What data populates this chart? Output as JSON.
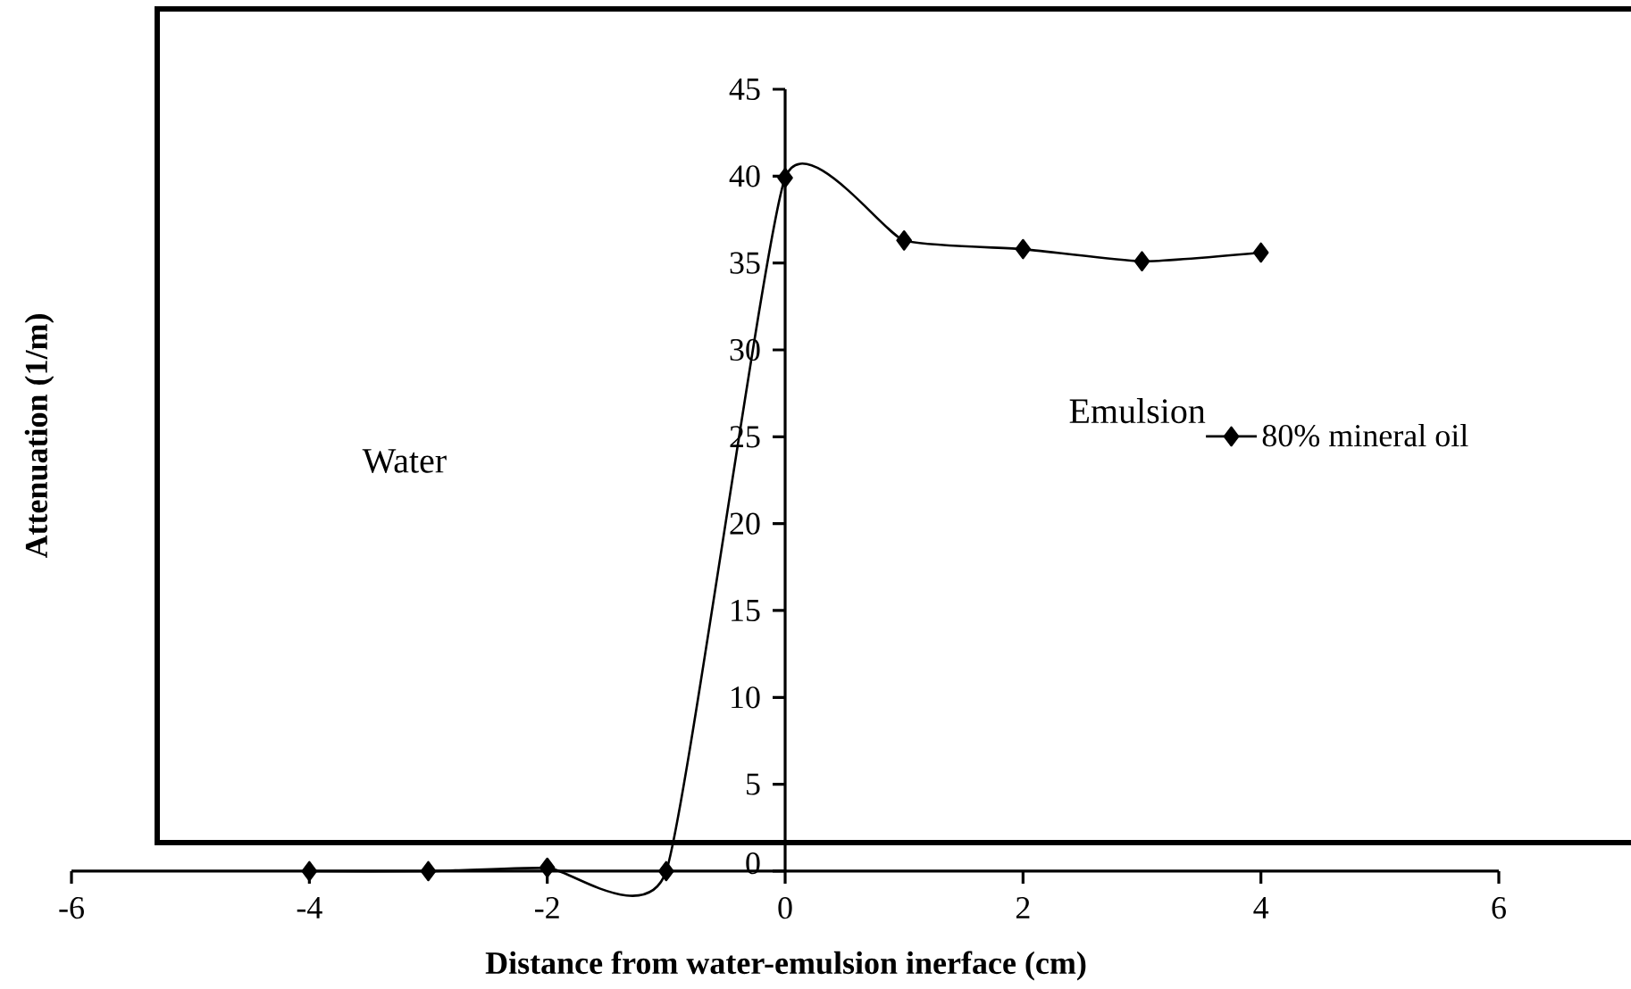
{
  "chart_data": {
    "type": "line",
    "xlabel": "Distance from water-emulsion inerface (cm)",
    "ylabel": "Attenuation (1/m)",
    "annotations": [
      "Water",
      "Emulsion"
    ],
    "x": [
      -4,
      -3,
      -2,
      -1,
      0,
      1,
      2,
      3,
      4
    ],
    "series": [
      {
        "name": "80% mineral oil",
        "color": "#000000",
        "values": [
          0,
          0,
          0.2,
          0,
          39.9,
          36.3,
          35.8,
          35.1,
          35.6
        ]
      }
    ],
    "xlim": [
      -6,
      6
    ],
    "xticks": [
      -6,
      -4,
      -2,
      0,
      2,
      4,
      6
    ],
    "ylim": [
      0,
      45
    ],
    "yticks": [
      0,
      5,
      10,
      15,
      20,
      25,
      30,
      35,
      40,
      45
    ],
    "marker": "diamond",
    "line_style": "solid",
    "grid": false,
    "legend": "right"
  }
}
